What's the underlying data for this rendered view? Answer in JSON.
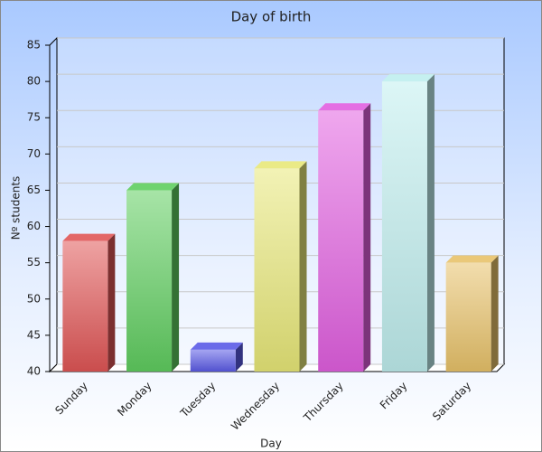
{
  "chart_data": {
    "type": "bar",
    "title": "Day of birth",
    "x_label": "Day",
    "y_label": "Nº students",
    "categories": [
      "Sunday",
      "Monday",
      "Tuesday",
      "Wednesday",
      "Thursday",
      "Friday",
      "Saturday"
    ],
    "values": [
      58,
      65,
      43,
      68,
      76,
      80,
      55
    ],
    "colors": [
      "#e05656",
      "#5fce5f",
      "#5a5ae6",
      "#e8e878",
      "#e15fe0",
      "#bfeeee",
      "#e8c26a"
    ],
    "ylim": [
      40,
      85
    ],
    "yticks": [
      40,
      45,
      50,
      55,
      60,
      65,
      70,
      75,
      80,
      85
    ],
    "grid": true
  }
}
